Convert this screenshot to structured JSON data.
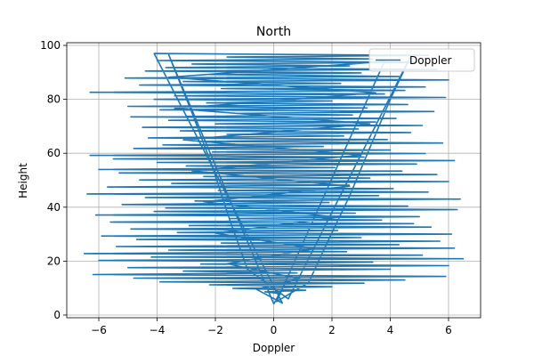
{
  "chart_data": {
    "type": "line",
    "title": "North",
    "xlabel": "Doppler",
    "ylabel": "Height",
    "xlim": [
      -7.1,
      7.1
    ],
    "ylim": [
      -1,
      101
    ],
    "xticks": [
      -6,
      -4,
      -2,
      0,
      2,
      4,
      6
    ],
    "yticks": [
      0,
      20,
      40,
      60,
      80,
      100
    ],
    "grid": true,
    "legend": {
      "placement": "top-right",
      "entries": [
        "Doppler"
      ]
    },
    "series": [
      {
        "name": "Doppler",
        "color": "#1f77b4",
        "points": [
          [
            0.0,
            4
          ],
          [
            0.2,
            8
          ],
          [
            -0.3,
            8.6
          ],
          [
            1.1,
            9.2
          ],
          [
            -1.4,
            9.9
          ],
          [
            2.0,
            10.5
          ],
          [
            -2.2,
            11.2
          ],
          [
            3.1,
            11.8
          ],
          [
            -3.9,
            12.3
          ],
          [
            4.5,
            13.0
          ],
          [
            -4.8,
            13.7
          ],
          [
            5.9,
            14.3
          ],
          [
            -6.2,
            15.0
          ],
          [
            0.8,
            15.6
          ],
          [
            -3.1,
            16.3
          ],
          [
            4.0,
            17.0
          ],
          [
            -5.0,
            17.6
          ],
          [
            6.0,
            18.3
          ],
          [
            -2.5,
            18.9
          ],
          [
            3.4,
            19.6
          ],
          [
            -6.0,
            20.3
          ],
          [
            6.5,
            20.9
          ],
          [
            -4.2,
            21.5
          ],
          [
            5.1,
            22.2
          ],
          [
            -6.5,
            22.8
          ],
          [
            2.5,
            23.5
          ],
          [
            -3.6,
            24.1
          ],
          [
            6.2,
            24.8
          ],
          [
            -5.4,
            25.4
          ],
          [
            4.3,
            26.1
          ],
          [
            -1.8,
            26.7
          ],
          [
            5.7,
            27.4
          ],
          [
            -4.7,
            28.0
          ],
          [
            3.0,
            28.7
          ],
          [
            -5.9,
            29.3
          ],
          [
            6.1,
            30.0
          ],
          [
            -3.3,
            30.6
          ],
          [
            2.2,
            31.3
          ],
          [
            -4.9,
            31.9
          ],
          [
            5.4,
            32.6
          ],
          [
            -2.9,
            33.2
          ],
          [
            4.8,
            33.9
          ],
          [
            -5.6,
            34.5
          ],
          [
            3.7,
            35.2
          ],
          [
            -1.5,
            35.8
          ],
          [
            5.0,
            36.5
          ],
          [
            -6.1,
            37.1
          ],
          [
            2.8,
            37.8
          ],
          [
            -4.1,
            38.4
          ],
          [
            6.3,
            39.1
          ],
          [
            -3.7,
            39.7
          ],
          [
            4.6,
            40.4
          ],
          [
            -5.2,
            41.0
          ],
          [
            1.9,
            41.7
          ],
          [
            -2.7,
            42.3
          ],
          [
            6.4,
            43.0
          ],
          [
            -4.4,
            43.6
          ],
          [
            3.6,
            44.3
          ],
          [
            -6.4,
            44.9
          ],
          [
            5.3,
            45.6
          ],
          [
            -1.9,
            46.2
          ],
          [
            4.1,
            46.9
          ],
          [
            -5.7,
            47.5
          ],
          [
            2.6,
            48.2
          ],
          [
            -3.5,
            48.8
          ],
          [
            6.0,
            49.5
          ],
          [
            -4.6,
            50.1
          ],
          [
            3.3,
            50.8
          ],
          [
            -2.4,
            51.4
          ],
          [
            5.6,
            52.1
          ],
          [
            -5.3,
            52.7
          ],
          [
            4.4,
            53.4
          ],
          [
            -6.0,
            54.0
          ],
          [
            2.1,
            54.7
          ],
          [
            -3.0,
            55.3
          ],
          [
            4.9,
            56.0
          ],
          [
            -4.0,
            56.6
          ],
          [
            6.2,
            57.3
          ],
          [
            -5.5,
            57.9
          ],
          [
            3.1,
            58.6
          ],
          [
            -6.3,
            59.2
          ],
          [
            5.2,
            59.9
          ],
          [
            -2.1,
            60.5
          ],
          [
            4.0,
            61.2
          ],
          [
            -4.8,
            61.8
          ],
          [
            1.7,
            62.5
          ],
          [
            -3.8,
            63.1
          ],
          [
            5.8,
            63.8
          ],
          [
            -2.6,
            64.4
          ],
          [
            3.9,
            65.1
          ],
          [
            -4.3,
            65.7
          ],
          [
            2.4,
            66.4
          ],
          [
            -1.6,
            67.0
          ],
          [
            4.7,
            67.7
          ],
          [
            -3.2,
            68.3
          ],
          [
            2.9,
            69.0
          ],
          [
            -4.5,
            69.6
          ],
          [
            5.1,
            70.3
          ],
          [
            -2.0,
            70.9
          ],
          [
            3.5,
            71.6
          ],
          [
            -3.6,
            72.2
          ],
          [
            4.2,
            72.9
          ],
          [
            -4.9,
            73.5
          ],
          [
            2.7,
            74.2
          ],
          [
            -1.3,
            74.8
          ],
          [
            5.5,
            75.5
          ],
          [
            -3.9,
            76.1
          ],
          [
            3.2,
            76.8
          ],
          [
            -5.0,
            77.4
          ],
          [
            4.6,
            78.1
          ],
          [
            -2.3,
            78.7
          ],
          [
            2.0,
            79.4
          ],
          [
            -4.1,
            80.0
          ],
          [
            5.9,
            80.7
          ],
          [
            -3.4,
            81.3
          ],
          [
            3.8,
            82.0
          ],
          [
            -6.3,
            82.6
          ],
          [
            4.5,
            83.3
          ],
          [
            -1.8,
            84.0
          ],
          [
            5.2,
            84.6
          ],
          [
            -4.6,
            85.3
          ],
          [
            2.3,
            85.9
          ],
          [
            -3.1,
            86.6
          ],
          [
            6.0,
            87.2
          ],
          [
            -5.1,
            87.9
          ],
          [
            4.3,
            88.5
          ],
          [
            -2.2,
            89.2
          ],
          [
            3.0,
            89.8
          ],
          [
            -4.4,
            90.5
          ],
          [
            5.6,
            91.1
          ],
          [
            -3.7,
            91.8
          ],
          [
            2.6,
            92.4
          ],
          [
            -2.8,
            93.1
          ],
          [
            4.9,
            93.7
          ],
          [
            -4.0,
            94.4
          ],
          [
            3.4,
            95.0
          ],
          [
            -1.6,
            95.7
          ],
          [
            5.3,
            96.3
          ],
          [
            -4.1,
            97.0
          ],
          [
            0.3,
            4.4
          ],
          [
            -0.6,
            9.6
          ],
          [
            0.9,
            13.4
          ],
          [
            -1.6,
            19.0
          ],
          [
            1.4,
            24.6
          ],
          [
            -2.0,
            30.4
          ],
          [
            2.2,
            36.2
          ],
          [
            -2.4,
            42.0
          ],
          [
            2.6,
            47.8
          ],
          [
            -2.8,
            53.5
          ],
          [
            3.0,
            59.3
          ],
          [
            -3.1,
            65.0
          ],
          [
            3.3,
            70.9
          ],
          [
            -3.4,
            76.6
          ],
          [
            3.5,
            82.4
          ],
          [
            -3.6,
            88.2
          ],
          [
            3.8,
            94.0
          ],
          [
            0.1,
            5.0
          ],
          [
            1.2,
            12.0
          ],
          [
            1.8,
            26.0
          ],
          [
            2.6,
            44.0
          ],
          [
            3.3,
            62.0
          ],
          [
            4.0,
            80.0
          ],
          [
            4.7,
            96.0
          ],
          [
            0.5,
            6.0
          ],
          [
            -0.9,
            17.0
          ],
          [
            -1.5,
            35.0
          ],
          [
            -2.1,
            55.0
          ],
          [
            -2.8,
            75.0
          ],
          [
            -3.6,
            96.5
          ],
          [
            0.0,
            4.2
          ]
        ]
      }
    ]
  }
}
